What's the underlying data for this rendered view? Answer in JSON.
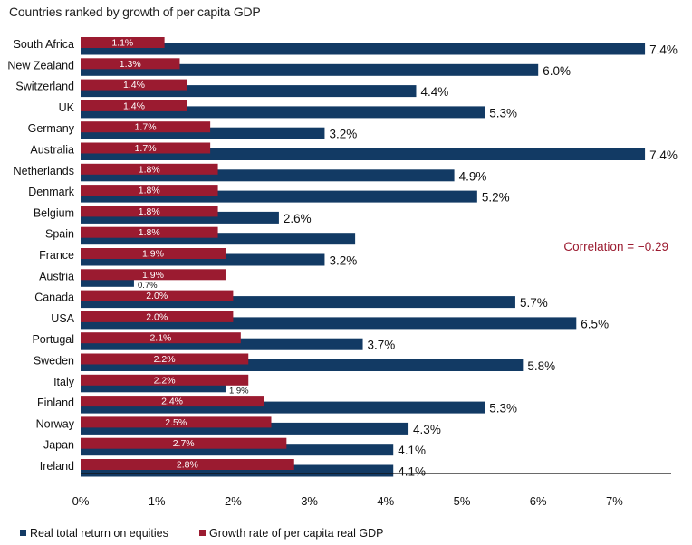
{
  "chart_data": {
    "type": "bar",
    "orientation": "horizontal",
    "title": "Countries ranked by growth of per capita GDP",
    "categories": [
      "South Africa",
      "New Zealand",
      "Switzerland",
      "UK",
      "Germany",
      "Australia",
      "Netherlands",
      "Denmark",
      "Belgium",
      "Spain",
      "France",
      "Austria",
      "Canada",
      "USA",
      "Portugal",
      "Sweden",
      "Italy",
      "Finland",
      "Norway",
      "Japan",
      "Ireland"
    ],
    "series": [
      {
        "name": "Real total return on equities",
        "color": "#123a64",
        "values": [
          7.4,
          6.0,
          4.4,
          5.3,
          3.2,
          7.4,
          4.9,
          5.2,
          2.6,
          3.6,
          3.2,
          0.7,
          5.7,
          6.5,
          3.7,
          5.8,
          1.9,
          5.3,
          4.3,
          4.1,
          4.1
        ],
        "labels": [
          "7.4%",
          "6.0%",
          "4.4%",
          "5.3%",
          "3.2%",
          "7.4%",
          "4.9%",
          "5.2%",
          "2.6%",
          "",
          "3.2%",
          "0.7%",
          "5.7%",
          "6.5%",
          "3.7%",
          "5.8%",
          "1.9%",
          "5.3%",
          "4.3%",
          "4.1%",
          "4.1%"
        ]
      },
      {
        "name": "Growth rate of per capita real GDP",
        "color": "#9b1b30",
        "values": [
          1.1,
          1.3,
          1.4,
          1.4,
          1.7,
          1.7,
          1.8,
          1.8,
          1.8,
          1.8,
          1.9,
          1.9,
          2.0,
          2.0,
          2.1,
          2.2,
          2.2,
          2.4,
          2.5,
          2.7,
          2.8
        ],
        "labels": [
          "1.1%",
          "1.3%",
          "1.4%",
          "1.4%",
          "1.7%",
          "1.7%",
          "1.8%",
          "1.8%",
          "1.8%",
          "1.8%",
          "1.9%",
          "1.9%",
          "2.0%",
          "2.0%",
          "2.1%",
          "2.2%",
          "2.2%",
          "2.4%",
          "2.5%",
          "2.7%",
          "2.8%"
        ]
      }
    ],
    "xlim": [
      0,
      8
    ],
    "xticks": [
      "0%",
      "1%",
      "2%",
      "3%",
      "4%",
      "5%",
      "6%",
      "7%"
    ],
    "xlabel": "",
    "ylabel": "",
    "grid": false,
    "legend_position": "bottom-left",
    "annotation": "Correlation = −0.29"
  }
}
